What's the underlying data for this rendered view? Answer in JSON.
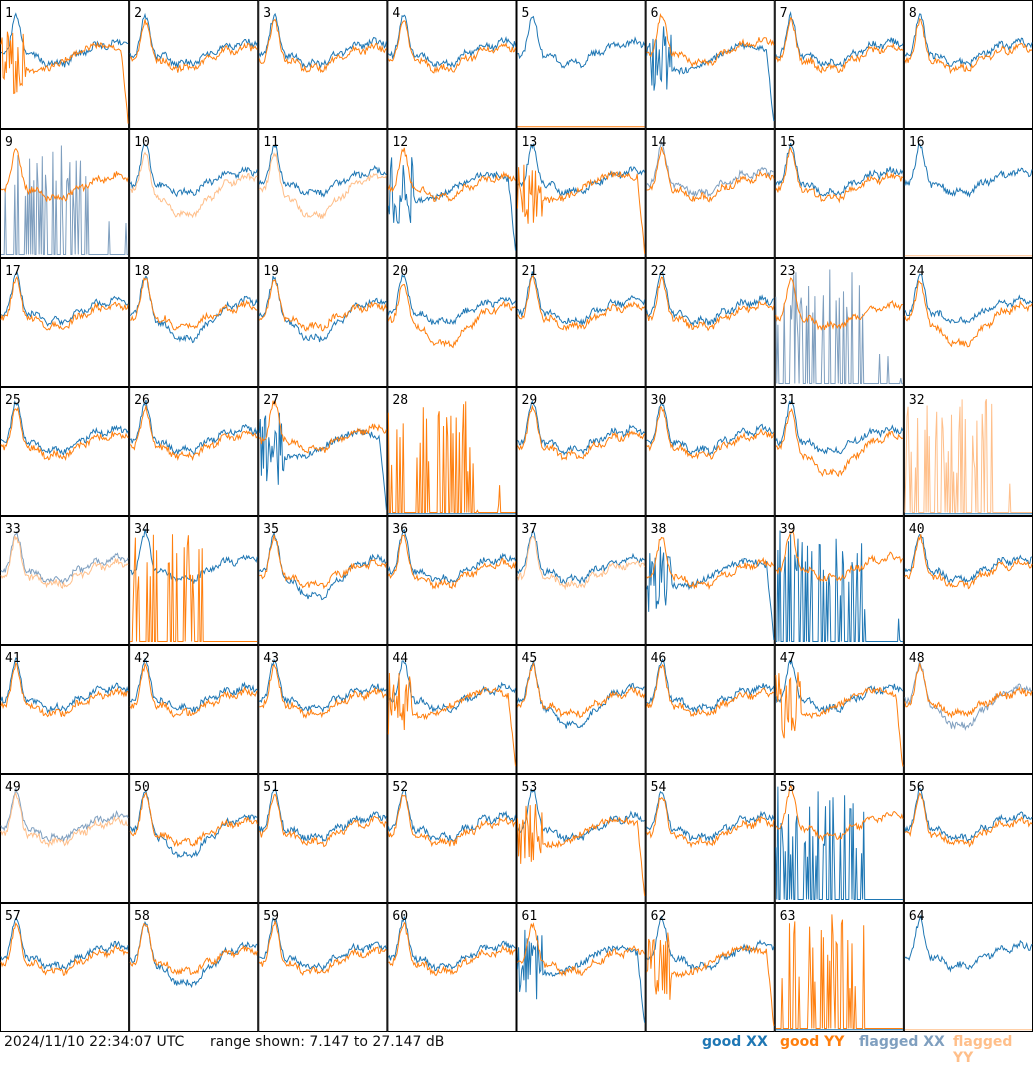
{
  "footer": {
    "timestamp": "2024/11/10 22:34:07 UTC",
    "range_text": "range shown: 7.147 to 27.147 dB"
  },
  "legend": [
    {
      "label": "good XX",
      "color": "#1f77b4"
    },
    {
      "label": "good YY",
      "color": "#ff7f0e"
    },
    {
      "label": "flagged XX",
      "color": "#7f9fbf"
    },
    {
      "label": "flagged YY",
      "color": "#ffbf8a"
    }
  ],
  "chart_data": {
    "type": "line",
    "layout": "small-multiples",
    "ylim": [
      7.147,
      27.147
    ],
    "panels": [
      {
        "label": "1",
        "xx": "good",
        "yy": "good",
        "shape_xx": "normal",
        "shape_yy": "drop"
      },
      {
        "label": "2",
        "xx": "good",
        "yy": "good",
        "shape_xx": "normal",
        "shape_yy": "normal"
      },
      {
        "label": "3",
        "xx": "good",
        "yy": "good",
        "shape_xx": "normal",
        "shape_yy": "normal"
      },
      {
        "label": "4",
        "xx": "good",
        "yy": "good",
        "shape_xx": "normal",
        "shape_yy": "normal"
      },
      {
        "label": "5",
        "xx": "good",
        "yy": "good",
        "shape_xx": "normal",
        "shape_yy": "flat"
      },
      {
        "label": "6",
        "xx": "good",
        "yy": "good",
        "shape_xx": "drop",
        "shape_yy": "high"
      },
      {
        "label": "7",
        "xx": "good",
        "yy": "good",
        "shape_xx": "normal",
        "shape_yy": "normal"
      },
      {
        "label": "8",
        "xx": "good",
        "yy": "good",
        "shape_xx": "normal",
        "shape_yy": "normal"
      },
      {
        "label": "9",
        "xx": "flagged",
        "yy": "good",
        "shape_xx": "spiky",
        "shape_yy": "normal"
      },
      {
        "label": "10",
        "xx": "good",
        "yy": "flagged",
        "shape_xx": "normal",
        "shape_yy": "low"
      },
      {
        "label": "11",
        "xx": "good",
        "yy": "flagged",
        "shape_xx": "normal",
        "shape_yy": "low"
      },
      {
        "label": "12",
        "xx": "good",
        "yy": "good",
        "shape_xx": "drop",
        "shape_yy": "normal"
      },
      {
        "label": "13",
        "xx": "good",
        "yy": "good",
        "shape_xx": "normal",
        "shape_yy": "drop"
      },
      {
        "label": "14",
        "xx": "flagged",
        "yy": "good",
        "shape_xx": "normal",
        "shape_yy": "normal"
      },
      {
        "label": "15",
        "xx": "good",
        "yy": "good",
        "shape_xx": "normal",
        "shape_yy": "normal"
      },
      {
        "label": "16",
        "xx": "good",
        "yy": "flagged",
        "shape_xx": "normal",
        "shape_yy": "flat"
      },
      {
        "label": "17",
        "xx": "good",
        "yy": "good",
        "shape_xx": "normal",
        "shape_yy": "normal"
      },
      {
        "label": "18",
        "xx": "good",
        "yy": "good",
        "shape_xx": "low",
        "shape_yy": "normal"
      },
      {
        "label": "19",
        "xx": "good",
        "yy": "good",
        "shape_xx": "low",
        "shape_yy": "normal"
      },
      {
        "label": "20",
        "xx": "good",
        "yy": "good",
        "shape_xx": "normal",
        "shape_yy": "low"
      },
      {
        "label": "21",
        "xx": "good",
        "yy": "good",
        "shape_xx": "normal",
        "shape_yy": "normal"
      },
      {
        "label": "22",
        "xx": "good",
        "yy": "good",
        "shape_xx": "normal",
        "shape_yy": "normal"
      },
      {
        "label": "23",
        "xx": "flagged",
        "yy": "good",
        "shape_xx": "spiky",
        "shape_yy": "normal"
      },
      {
        "label": "24",
        "xx": "good",
        "yy": "good",
        "shape_xx": "normal",
        "shape_yy": "low"
      },
      {
        "label": "25",
        "xx": "good",
        "yy": "good",
        "shape_xx": "normal",
        "shape_yy": "normal"
      },
      {
        "label": "26",
        "xx": "good",
        "yy": "good",
        "shape_xx": "normal",
        "shape_yy": "normal"
      },
      {
        "label": "27",
        "xx": "good",
        "yy": "good",
        "shape_xx": "drop",
        "shape_yy": "high"
      },
      {
        "label": "28",
        "xx": "good",
        "yy": "good",
        "shape_xx": "flat",
        "shape_yy": "spiky"
      },
      {
        "label": "29",
        "xx": "good",
        "yy": "good",
        "shape_xx": "normal",
        "shape_yy": "normal"
      },
      {
        "label": "30",
        "xx": "good",
        "yy": "good",
        "shape_xx": "normal",
        "shape_yy": "normal"
      },
      {
        "label": "31",
        "xx": "good",
        "yy": "good",
        "shape_xx": "normal",
        "shape_yy": "low"
      },
      {
        "label": "32",
        "xx": "good",
        "yy": "flagged",
        "shape_xx": "flat",
        "shape_yy": "spiky"
      },
      {
        "label": "33",
        "xx": "flagged",
        "yy": "flagged",
        "shape_xx": "normal",
        "shape_yy": "normal"
      },
      {
        "label": "34",
        "xx": "good",
        "yy": "good",
        "shape_xx": "normal",
        "shape_yy": "spiky"
      },
      {
        "label": "35",
        "xx": "good",
        "yy": "good",
        "shape_xx": "low",
        "shape_yy": "normal"
      },
      {
        "label": "36",
        "xx": "good",
        "yy": "good",
        "shape_xx": "normal",
        "shape_yy": "normal"
      },
      {
        "label": "37",
        "xx": "good",
        "yy": "flagged",
        "shape_xx": "normal",
        "shape_yy": "normal"
      },
      {
        "label": "38",
        "xx": "good",
        "yy": "good",
        "shape_xx": "drop",
        "shape_yy": "normal"
      },
      {
        "label": "39",
        "xx": "good",
        "yy": "good",
        "shape_xx": "spiky",
        "shape_yy": "high"
      },
      {
        "label": "40",
        "xx": "good",
        "yy": "good",
        "shape_xx": "normal",
        "shape_yy": "normal"
      },
      {
        "label": "41",
        "xx": "good",
        "yy": "good",
        "shape_xx": "normal",
        "shape_yy": "normal"
      },
      {
        "label": "42",
        "xx": "good",
        "yy": "good",
        "shape_xx": "normal",
        "shape_yy": "normal"
      },
      {
        "label": "43",
        "xx": "good",
        "yy": "good",
        "shape_xx": "normal",
        "shape_yy": "normal"
      },
      {
        "label": "44",
        "xx": "good",
        "yy": "good",
        "shape_xx": "normal",
        "shape_yy": "drop"
      },
      {
        "label": "45",
        "xx": "good",
        "yy": "good",
        "shape_xx": "low",
        "shape_yy": "normal"
      },
      {
        "label": "46",
        "xx": "good",
        "yy": "good",
        "shape_xx": "normal",
        "shape_yy": "normal"
      },
      {
        "label": "47",
        "xx": "good",
        "yy": "good",
        "shape_xx": "normal",
        "shape_yy": "drop"
      },
      {
        "label": "48",
        "xx": "flagged",
        "yy": "good",
        "shape_xx": "low",
        "shape_yy": "normal"
      },
      {
        "label": "49",
        "xx": "flagged",
        "yy": "flagged",
        "shape_xx": "normal",
        "shape_yy": "normal"
      },
      {
        "label": "50",
        "xx": "good",
        "yy": "good",
        "shape_xx": "low",
        "shape_yy": "normal"
      },
      {
        "label": "51",
        "xx": "good",
        "yy": "good",
        "shape_xx": "normal",
        "shape_yy": "normal"
      },
      {
        "label": "52",
        "xx": "good",
        "yy": "good",
        "shape_xx": "normal",
        "shape_yy": "normal"
      },
      {
        "label": "53",
        "xx": "good",
        "yy": "good",
        "shape_xx": "normal",
        "shape_yy": "drop"
      },
      {
        "label": "54",
        "xx": "good",
        "yy": "good",
        "shape_xx": "normal",
        "shape_yy": "normal"
      },
      {
        "label": "55",
        "xx": "good",
        "yy": "good",
        "shape_xx": "spiky",
        "shape_yy": "high"
      },
      {
        "label": "56",
        "xx": "good",
        "yy": "good",
        "shape_xx": "normal",
        "shape_yy": "normal"
      },
      {
        "label": "57",
        "xx": "good",
        "yy": "good",
        "shape_xx": "normal",
        "shape_yy": "normal"
      },
      {
        "label": "58",
        "xx": "good",
        "yy": "good",
        "shape_xx": "low",
        "shape_yy": "normal"
      },
      {
        "label": "59",
        "xx": "good",
        "yy": "good",
        "shape_xx": "normal",
        "shape_yy": "normal"
      },
      {
        "label": "60",
        "xx": "good",
        "yy": "good",
        "shape_xx": "normal",
        "shape_yy": "normal"
      },
      {
        "label": "61",
        "xx": "good",
        "yy": "good",
        "shape_xx": "drop",
        "shape_yy": "normal"
      },
      {
        "label": "62",
        "xx": "good",
        "yy": "good",
        "shape_xx": "normal",
        "shape_yy": "drop"
      },
      {
        "label": "63",
        "xx": "good",
        "yy": "good",
        "shape_xx": "flat",
        "shape_yy": "spiky"
      },
      {
        "label": "64",
        "xx": "good",
        "yy": "flagged",
        "shape_xx": "normal",
        "shape_yy": "flat"
      }
    ]
  }
}
